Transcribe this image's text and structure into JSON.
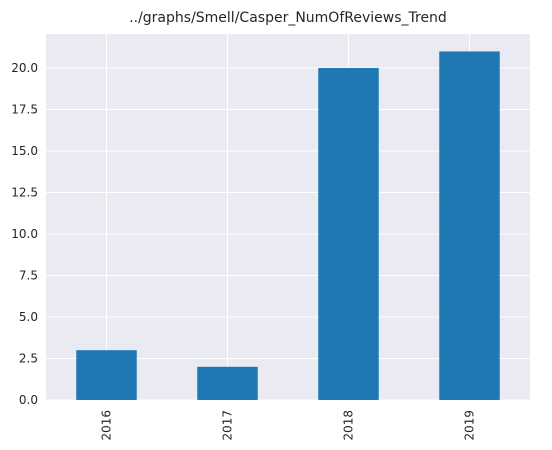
{
  "chart_data": {
    "type": "bar",
    "title": "../graphs/Smell/Casper_NumOfReviews_Trend",
    "xlabel": "",
    "ylabel": "",
    "categories": [
      "2016",
      "2017",
      "2018",
      "2019"
    ],
    "values": [
      3,
      2,
      20,
      21
    ],
    "ylim": [
      0,
      22.05
    ],
    "yticks": [
      "0.0",
      "2.5",
      "5.0",
      "7.5",
      "10.0",
      "12.5",
      "15.0",
      "17.5",
      "20.0"
    ],
    "grid": true,
    "legend": "none",
    "colors": {
      "bar": "#1f77b4",
      "plot_bg": "#eaeaf2",
      "grid": "#ffffff",
      "text": "#262626"
    }
  }
}
